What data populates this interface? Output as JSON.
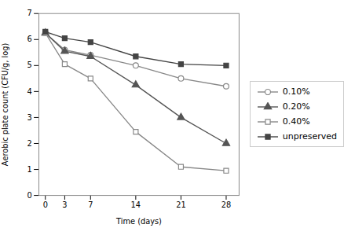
{
  "chart_data": {
    "type": "line",
    "xlabel": "Time (days)",
    "ylabel": "Aerobic plate count (CFU/g, log)",
    "x": [
      0,
      3,
      7,
      14,
      21,
      28
    ],
    "series": [
      {
        "name": "0.10%",
        "color": "#888888",
        "marker": "circle-open",
        "line_style": "solid",
        "values": [
          6.25,
          5.6,
          5.4,
          5.0,
          4.5,
          4.2
        ]
      },
      {
        "name": "0.20%",
        "color": "#555555",
        "marker": "triangle",
        "line_style": "solid",
        "values": [
          6.25,
          5.55,
          5.35,
          4.25,
          3.0,
          2.0
        ]
      },
      {
        "name": "0.40%",
        "color": "#888888",
        "marker": "square-open",
        "line_style": "solid",
        "values": [
          6.25,
          5.05,
          4.5,
          2.45,
          1.1,
          0.95
        ]
      },
      {
        "name": "unpreserved",
        "color": "#444444",
        "marker": "square",
        "line_style": "solid",
        "values": [
          6.3,
          6.05,
          5.9,
          5.35,
          5.05,
          5.0
        ]
      }
    ],
    "xlim": [
      -1,
      30
    ],
    "ylim": [
      0,
      7
    ],
    "xticks": [
      0,
      3,
      7,
      14,
      21,
      28
    ],
    "yticks": [
      0,
      1,
      2,
      3,
      4,
      5,
      6,
      7
    ],
    "legend": "right",
    "grid": false
  }
}
